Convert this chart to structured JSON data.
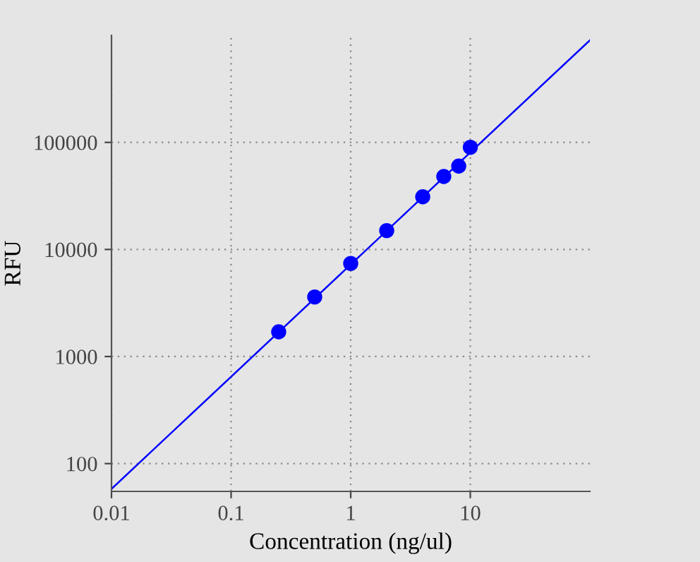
{
  "chart_data": {
    "type": "scatter",
    "xlabel": "Concentration (ng/ul)",
    "ylabel": "RFU",
    "log": "xy",
    "grid": true,
    "xlim": [
      0.01,
      100
    ],
    "ylim": [
      55,
      1000000
    ],
    "xticks": [
      0.01,
      0.1,
      1,
      10
    ],
    "yticks": [
      100,
      1000,
      10000,
      100000
    ],
    "series": [
      {
        "marker": "circle",
        "color": "#0000ff",
        "x": [
          0.25,
          0.5,
          1,
          2,
          4,
          6,
          8,
          10
        ],
        "values": [
          1700,
          3600,
          7400,
          15000,
          31000,
          48000,
          60000,
          90000
        ]
      },
      {
        "type": "line",
        "marker": "none",
        "color": "#0000ff",
        "x": [
          0.01,
          100
        ],
        "values": [
          58,
          900000
        ]
      }
    ]
  }
}
